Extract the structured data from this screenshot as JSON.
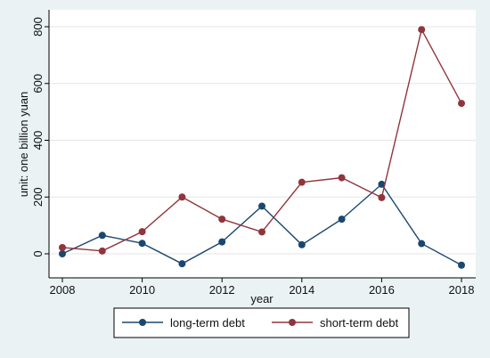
{
  "chart_data": {
    "type": "line",
    "xlabel": "year",
    "ylabel": "unit: one billion yuan",
    "xlim": [
      2008,
      2018
    ],
    "ylim": [
      0,
      800
    ],
    "x_ticks": [
      2008,
      2010,
      2012,
      2014,
      2016,
      2018
    ],
    "y_ticks": [
      0,
      200,
      400,
      600,
      800
    ],
    "grid": "horizontal",
    "legend_placement": "bottom",
    "x": [
      2008,
      2009,
      2010,
      2011,
      2012,
      2013,
      2014,
      2015,
      2016,
      2017,
      2018
    ],
    "series": [
      {
        "name": "long-term debt",
        "color": "#1a476f",
        "values": [
          0,
          65,
          37,
          -35,
          42,
          168,
          32,
          122,
          245,
          36,
          -40
        ]
      },
      {
        "name": "short-term debt",
        "color": "#90353b",
        "values": [
          22,
          10,
          78,
          200,
          122,
          77,
          252,
          268,
          198,
          790,
          530
        ]
      }
    ]
  }
}
